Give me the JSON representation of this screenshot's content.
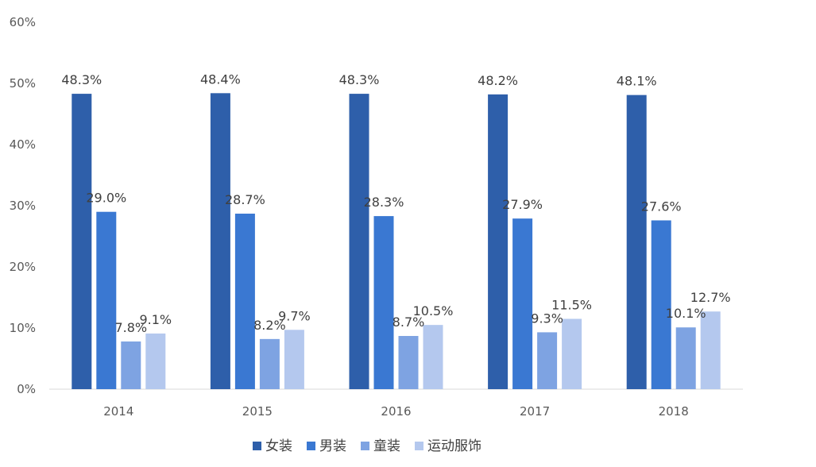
{
  "chart_data": {
    "type": "bar",
    "categories": [
      "2014",
      "2015",
      "2016",
      "2017",
      "2018"
    ],
    "series": [
      {
        "name": "女装",
        "values": [
          48.3,
          48.4,
          48.3,
          48.2,
          48.1
        ],
        "labels": [
          "48.3%",
          "48.4%",
          "48.3%",
          "48.2%",
          "48.1%"
        ],
        "color": "#2E5FAA"
      },
      {
        "name": "男装",
        "values": [
          29.0,
          28.7,
          28.3,
          27.9,
          27.6
        ],
        "labels": [
          "29.0%",
          "28.7%",
          "28.3%",
          "27.9%",
          "27.6%"
        ],
        "color": "#3A78D2"
      },
      {
        "name": "童装",
        "values": [
          7.8,
          8.2,
          8.7,
          9.3,
          10.1
        ],
        "labels": [
          "7.8%",
          "8.2%",
          "8.7%",
          "9.3%",
          "10.1%"
        ],
        "color": "#7EA3E2"
      },
      {
        "name": "运动服饰",
        "values": [
          9.1,
          9.7,
          10.5,
          11.5,
          12.7
        ],
        "labels": [
          "9.1%",
          "9.7%",
          "10.5%",
          "11.5%",
          "12.7%"
        ],
        "color": "#B4C8EE"
      }
    ],
    "y_ticks": [
      "0%",
      "10%",
      "20%",
      "30%",
      "40%",
      "50%",
      "60%"
    ],
    "ylim": [
      0,
      60
    ],
    "title": "",
    "xlabel": "",
    "ylabel": "",
    "grid": false,
    "legend_position": "bottom-center"
  }
}
